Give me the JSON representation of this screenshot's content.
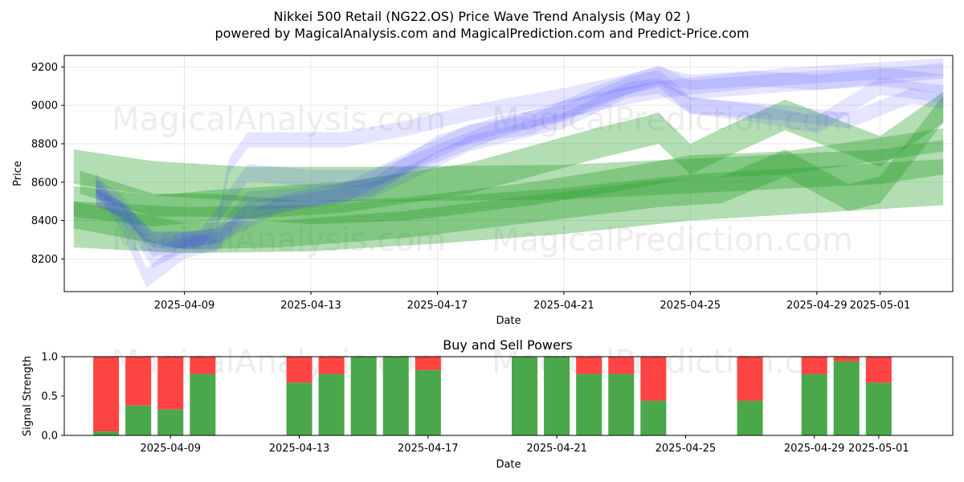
{
  "chart_data": [
    {
      "type": "area",
      "title": "Nikkei 500 Retail (NG22.OS) Price Wave Trend Analysis (May 02 )",
      "subtitle": "powered by MagicalAnalysis.com and MagicalPrediction.com and Predict-Price.com",
      "xlabel": "Date",
      "ylabel": "Price",
      "x_range_days": [
        -1.8,
        26.3
      ],
      "ylim": [
        8030,
        9260
      ],
      "y_ticks": [
        8200,
        8400,
        8600,
        8800,
        9000,
        9200
      ],
      "x_ticks": [
        "2025-04-09",
        "2025-04-13",
        "2025-04-17",
        "2025-04-21",
        "2025-04-25",
        "2025-04-29",
        "2025-05-01"
      ],
      "x_tick_days": [
        2,
        6,
        10,
        14,
        18,
        22,
        24
      ],
      "grid": true,
      "watermarks": [
        "MagicalAnalysis.com",
        "MagicalPrediction.com",
        "MagicalAnalysis.com",
        "MagicalPrediction.com"
      ],
      "series": [
        {
          "name": "green-band-1",
          "color": "#2ca02c",
          "halfwidth": 90,
          "x": [
            -1.5,
            1,
            4,
            8,
            14,
            19,
            24,
            26
          ],
          "values": [
            8680,
            8620,
            8590,
            8590,
            8600,
            8640,
            8680,
            8730
          ]
        },
        {
          "name": "green-band-2",
          "color": "#2ca02c",
          "halfwidth": 120,
          "x": [
            -1.5,
            2,
            6,
            10,
            14,
            18,
            22,
            26
          ],
          "values": [
            8380,
            8350,
            8360,
            8400,
            8450,
            8520,
            8560,
            8600
          ]
        },
        {
          "name": "green-band-3",
          "color": "#2ca02c",
          "halfwidth": 60,
          "x": [
            -1.3,
            1,
            3,
            6,
            9,
            13,
            16,
            18,
            21,
            26
          ],
          "values": [
            8600,
            8480,
            8480,
            8440,
            8460,
            8540,
            8620,
            8680,
            8700,
            8820
          ]
        },
        {
          "name": "green-band-4",
          "color": "#2ca02c",
          "halfwidth": 70,
          "x": [
            -1.5,
            2,
            5,
            9,
            13,
            17,
            19,
            21,
            23,
            24,
            26
          ],
          "values": [
            8430,
            8320,
            8330,
            8380,
            8460,
            8540,
            8560,
            8700,
            8520,
            8560,
            8980
          ]
        },
        {
          "name": "green-band-5",
          "color": "#2ca02c",
          "halfwidth": 80,
          "x": [
            -1.5,
            1,
            3,
            7,
            11,
            15,
            17,
            18,
            19,
            21,
            24,
            26
          ],
          "values": [
            8500,
            8450,
            8480,
            8520,
            8620,
            8800,
            8880,
            8720,
            8800,
            8950,
            8760,
            8990
          ]
        },
        {
          "name": "blue-band-1",
          "color": "#3333ff",
          "halfwidth": 40,
          "x": [
            -0.8,
            0,
            1,
            2,
            3,
            5,
            8,
            11,
            14,
            16,
            17,
            18,
            21,
            23,
            25,
            26
          ],
          "values": [
            8580,
            8500,
            8250,
            8300,
            8320,
            8480,
            8560,
            8800,
            8920,
            9080,
            9100,
            9000,
            8960,
            8920,
            9050,
            9020
          ]
        },
        {
          "name": "blue-band-2",
          "color": "#3333ff",
          "halfwidth": 45,
          "x": [
            -0.8,
            0,
            1,
            2,
            3,
            4,
            6,
            8,
            10,
            12,
            14,
            16,
            17,
            18,
            20,
            22,
            24,
            26
          ],
          "values": [
            8560,
            8450,
            8200,
            8280,
            8280,
            8450,
            8520,
            8580,
            8800,
            8900,
            8960,
            9100,
            9140,
            9000,
            8960,
            8900,
            9100,
            9060
          ]
        },
        {
          "name": "blue-band-3",
          "color": "#3333ff",
          "halfwidth": 50,
          "x": [
            -0.8,
            0,
            0.8,
            2,
            3,
            4,
            7,
            9,
            11,
            13,
            15,
            17,
            18,
            21,
            24,
            26
          ],
          "values": [
            8600,
            8400,
            8100,
            8250,
            8300,
            8500,
            8540,
            8700,
            8850,
            8900,
            9050,
            9160,
            9080,
            9120,
            9150,
            9110
          ]
        },
        {
          "name": "blue-band-4",
          "color": "#3333ff",
          "halfwidth": 45,
          "x": [
            -0.8,
            0,
            1,
            2.5,
            4,
            6,
            8,
            10,
            12,
            14,
            16,
            17,
            18,
            21,
            24,
            26
          ],
          "values": [
            8520,
            8460,
            8300,
            8300,
            8650,
            8620,
            8620,
            8750,
            8880,
            8980,
            9050,
            9080,
            9100,
            9150,
            9180,
            9200
          ]
        },
        {
          "name": "blue-band-5",
          "color": "#3333ff",
          "halfwidth": 40,
          "x": [
            -0.8,
            0,
            1,
            2,
            3,
            3.4,
            4,
            7,
            9,
            11,
            14,
            16,
            17,
            18,
            20,
            22,
            24,
            26
          ],
          "values": [
            8520,
            8460,
            8300,
            8300,
            8320,
            8680,
            8820,
            8820,
            8880,
            8960,
            9050,
            9120,
            9160,
            9120,
            9140,
            9120,
            9150,
            9180
          ]
        }
      ]
    },
    {
      "type": "bar",
      "title": "Buy and Sell Powers",
      "xlabel": "Date",
      "ylabel": "Signal Strength",
      "ylim": [
        0,
        1
      ],
      "y_ticks": [
        "0.0",
        "0.5",
        "1.0"
      ],
      "x_range_days": [
        -1.3,
        26.3
      ],
      "x_ticks": [
        "2025-04-09",
        "2025-04-13",
        "2025-04-17",
        "2025-04-21",
        "2025-04-25",
        "2025-04-29",
        "2025-05-01"
      ],
      "x_tick_days": [
        2,
        6,
        10,
        14,
        18,
        22,
        24
      ],
      "buy_color": "#4aa84a",
      "sell_color": "#ff4444",
      "series": [
        {
          "name": "Buy",
          "x": [
            0,
            1,
            2,
            3,
            6,
            7,
            8,
            9,
            10,
            13,
            14,
            15,
            16,
            17,
            20,
            22,
            23,
            24
          ],
          "values": [
            0.05,
            0.38,
            0.33,
            0.78,
            0.67,
            0.78,
            1.0,
            1.0,
            0.83,
            1.0,
            1.0,
            0.78,
            0.78,
            0.44,
            0.44,
            0.78,
            0.94,
            0.67
          ]
        },
        {
          "name": "Sell",
          "x": [
            0,
            1,
            2,
            3,
            6,
            7,
            8,
            9,
            10,
            13,
            14,
            15,
            16,
            17,
            20,
            22,
            23,
            24
          ],
          "values": [
            0.95,
            0.62,
            0.67,
            0.22,
            0.33,
            0.22,
            0.0,
            0.0,
            0.17,
            0.0,
            0.0,
            0.22,
            0.22,
            0.56,
            0.56,
            0.22,
            0.06,
            0.33
          ]
        }
      ]
    }
  ]
}
